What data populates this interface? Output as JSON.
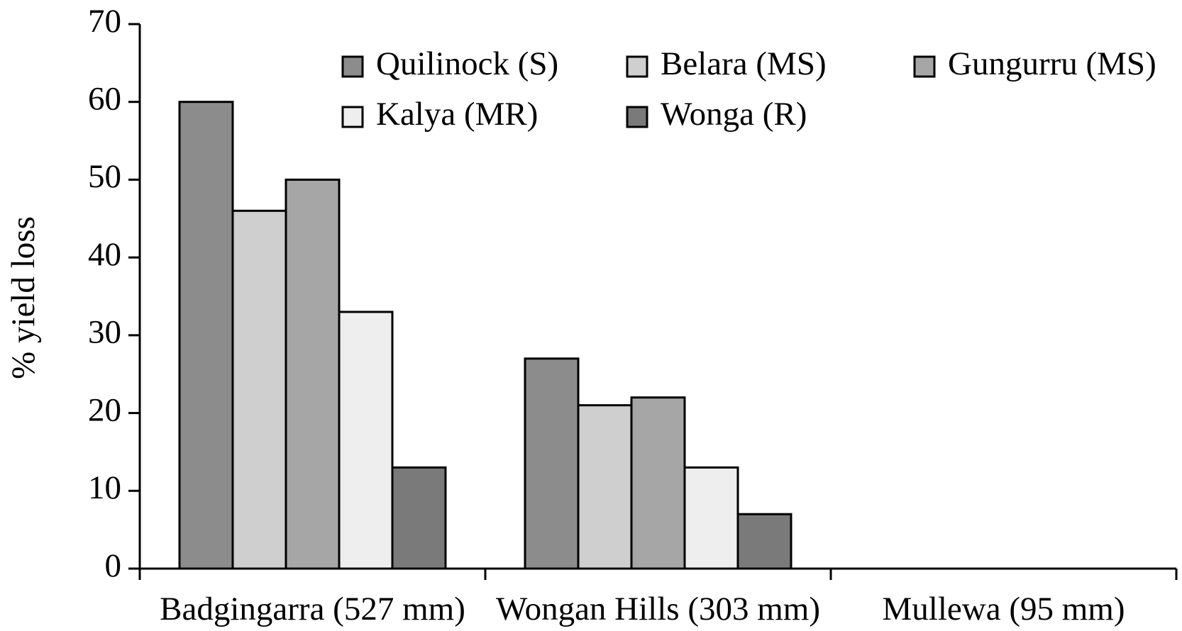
{
  "chart_data": {
    "type": "bar",
    "ylabel": "% yield loss",
    "categories": [
      "Badgingarra (527 mm)",
      "Wongan Hills (303 mm)",
      "Mullewa (95 mm)"
    ],
    "series": [
      {
        "name": "Quilinock (S)",
        "color": "#8c8c8c",
        "values": [
          60,
          27,
          0
        ]
      },
      {
        "name": "Belara (MS)",
        "color": "#cfcfcf",
        "values": [
          46,
          21,
          0
        ]
      },
      {
        "name": "Gungurru (MS)",
        "color": "#a6a6a6",
        "values": [
          50,
          22,
          0
        ]
      },
      {
        "name": "Kalya (MR)",
        "color": "#eeeeee",
        "values": [
          33,
          13,
          0
        ]
      },
      {
        "name": "Wonga (R)",
        "color": "#7a7a7a",
        "values": [
          13,
          7,
          0
        ]
      }
    ],
    "ylim": [
      0,
      70
    ],
    "yticks": [
      0,
      10,
      20,
      30,
      40,
      50,
      60,
      70
    ]
  }
}
